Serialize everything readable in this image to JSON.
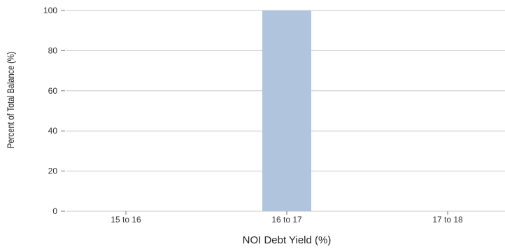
{
  "chart_data": {
    "type": "bar",
    "categories": [
      "15 to 16",
      "16 to 17",
      "17 to 18"
    ],
    "values": [
      0,
      100,
      0
    ],
    "title": "",
    "xlabel": "NOI Debt Yield (%)",
    "ylabel": "Percent of Total Balance (%)",
    "ylim": [
      0,
      100
    ],
    "yticks": [
      0,
      20,
      40,
      60,
      80,
      100
    ],
    "grid": true,
    "colors": {
      "bar": "#b0c4de",
      "grid": "#c8c8c8",
      "tick": "#777777"
    }
  }
}
